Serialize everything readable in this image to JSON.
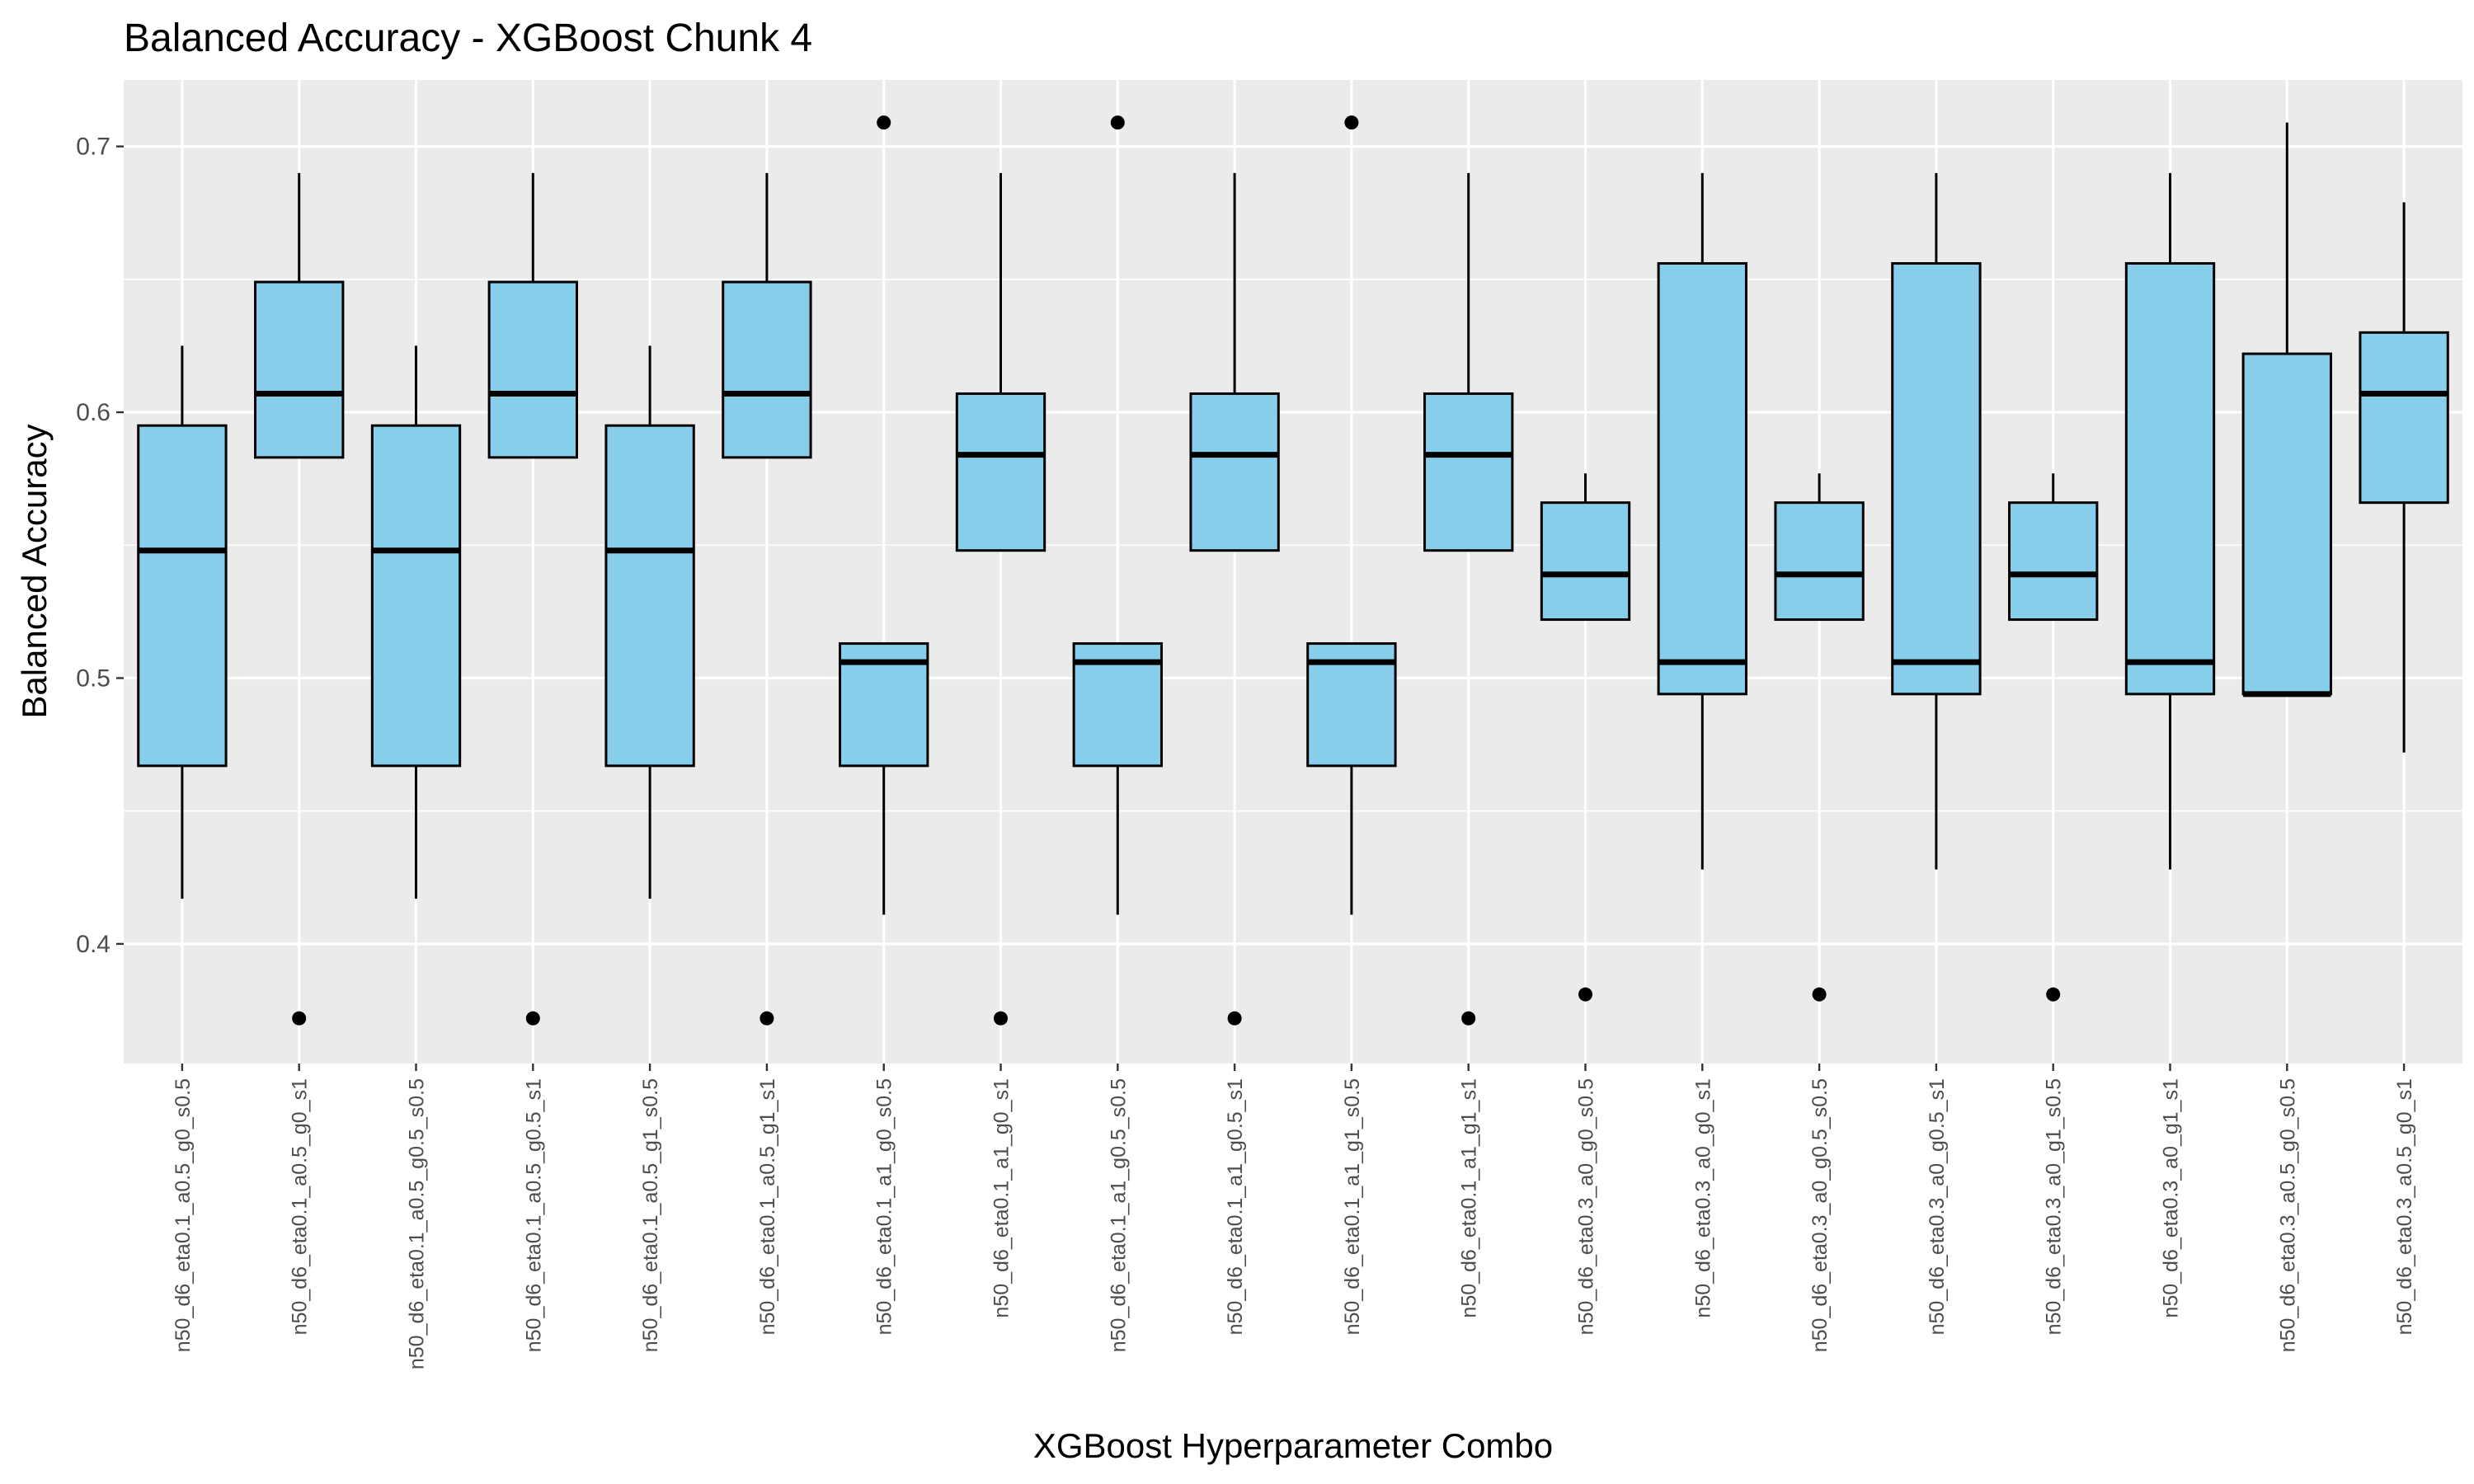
{
  "chart_data": {
    "type": "boxplot",
    "title": "Balanced Accuracy - XGBoost Chunk 4",
    "xlabel": "XGBoost Hyperparameter Combo",
    "ylabel": "Balanced Accuracy",
    "ylim": [
      0.355,
      0.725
    ],
    "yticks": [
      0.4,
      0.5,
      0.6,
      0.7
    ],
    "ytick_labels": [
      "0.4",
      "0.5",
      "0.6",
      "0.7"
    ],
    "grid": true,
    "legend": "none",
    "colors": {
      "box_fill": "#87ceeb",
      "box_line": "#000000",
      "panel_bg": "#ebebeb",
      "grid_major": "#ffffff",
      "outlier": "#000000"
    },
    "categories": [
      "n50_d6_eta0.1_a0.5_g0_s0.5",
      "n50_d6_eta0.1_a0.5_g0_s1",
      "n50_d6_eta0.1_a0.5_g0.5_s0.5",
      "n50_d6_eta0.1_a0.5_g0.5_s1",
      "n50_d6_eta0.1_a0.5_g1_s0.5",
      "n50_d6_eta0.1_a0.5_g1_s1",
      "n50_d6_eta0.1_a1_g0_s0.5",
      "n50_d6_eta0.1_a1_g0_s1",
      "n50_d6_eta0.1_a1_g0.5_s0.5",
      "n50_d6_eta0.1_a1_g0.5_s1",
      "n50_d6_eta0.1_a1_g1_s0.5",
      "n50_d6_eta0.1_a1_g1_s1",
      "n50_d6_eta0.3_a0_g0_s0.5",
      "n50_d6_eta0.3_a0_g0_s1",
      "n50_d6_eta0.3_a0_g0.5_s0.5",
      "n50_d6_eta0.3_a0_g0.5_s1",
      "n50_d6_eta0.3_a0_g1_s0.5",
      "n50_d6_eta0.3_a0_g1_s1",
      "n50_d6_eta0.3_a0.5_g0_s0.5",
      "n50_d6_eta0.3_a0.5_g0_s1"
    ],
    "boxes": [
      {
        "whisker_low": 0.417,
        "q1": 0.467,
        "median": 0.548,
        "q3": 0.595,
        "whisker_high": 0.625,
        "outliers": []
      },
      {
        "whisker_low": 0.583,
        "q1": 0.583,
        "median": 0.607,
        "q3": 0.649,
        "whisker_high": 0.69,
        "outliers": [
          0.372
        ]
      },
      {
        "whisker_low": 0.417,
        "q1": 0.467,
        "median": 0.548,
        "q3": 0.595,
        "whisker_high": 0.625,
        "outliers": []
      },
      {
        "whisker_low": 0.583,
        "q1": 0.583,
        "median": 0.607,
        "q3": 0.649,
        "whisker_high": 0.69,
        "outliers": [
          0.372
        ]
      },
      {
        "whisker_low": 0.417,
        "q1": 0.467,
        "median": 0.548,
        "q3": 0.595,
        "whisker_high": 0.625,
        "outliers": []
      },
      {
        "whisker_low": 0.583,
        "q1": 0.583,
        "median": 0.607,
        "q3": 0.649,
        "whisker_high": 0.69,
        "outliers": [
          0.372
        ]
      },
      {
        "whisker_low": 0.411,
        "q1": 0.467,
        "median": 0.506,
        "q3": 0.513,
        "whisker_high": 0.513,
        "outliers": [
          0.709
        ]
      },
      {
        "whisker_low": 0.548,
        "q1": 0.548,
        "median": 0.584,
        "q3": 0.607,
        "whisker_high": 0.69,
        "outliers": [
          0.372
        ]
      },
      {
        "whisker_low": 0.411,
        "q1": 0.467,
        "median": 0.506,
        "q3": 0.513,
        "whisker_high": 0.513,
        "outliers": [
          0.709
        ]
      },
      {
        "whisker_low": 0.548,
        "q1": 0.548,
        "median": 0.584,
        "q3": 0.607,
        "whisker_high": 0.69,
        "outliers": [
          0.372
        ]
      },
      {
        "whisker_low": 0.411,
        "q1": 0.467,
        "median": 0.506,
        "q3": 0.513,
        "whisker_high": 0.513,
        "outliers": [
          0.709
        ]
      },
      {
        "whisker_low": 0.548,
        "q1": 0.548,
        "median": 0.584,
        "q3": 0.607,
        "whisker_high": 0.69,
        "outliers": [
          0.372
        ]
      },
      {
        "whisker_low": 0.522,
        "q1": 0.522,
        "median": 0.539,
        "q3": 0.566,
        "whisker_high": 0.577,
        "outliers": [
          0.381
        ]
      },
      {
        "whisker_low": 0.428,
        "q1": 0.494,
        "median": 0.506,
        "q3": 0.656,
        "whisker_high": 0.69,
        "outliers": []
      },
      {
        "whisker_low": 0.522,
        "q1": 0.522,
        "median": 0.539,
        "q3": 0.566,
        "whisker_high": 0.577,
        "outliers": [
          0.381
        ]
      },
      {
        "whisker_low": 0.428,
        "q1": 0.494,
        "median": 0.506,
        "q3": 0.656,
        "whisker_high": 0.69,
        "outliers": []
      },
      {
        "whisker_low": 0.522,
        "q1": 0.522,
        "median": 0.539,
        "q3": 0.566,
        "whisker_high": 0.577,
        "outliers": [
          0.381
        ]
      },
      {
        "whisker_low": 0.428,
        "q1": 0.494,
        "median": 0.506,
        "q3": 0.656,
        "whisker_high": 0.69,
        "outliers": []
      },
      {
        "whisker_low": 0.494,
        "q1": 0.494,
        "median": 0.494,
        "q3": 0.622,
        "whisker_high": 0.709,
        "outliers": []
      },
      {
        "whisker_low": 0.472,
        "q1": 0.566,
        "median": 0.607,
        "q3": 0.63,
        "whisker_high": 0.679,
        "outliers": []
      }
    ]
  }
}
